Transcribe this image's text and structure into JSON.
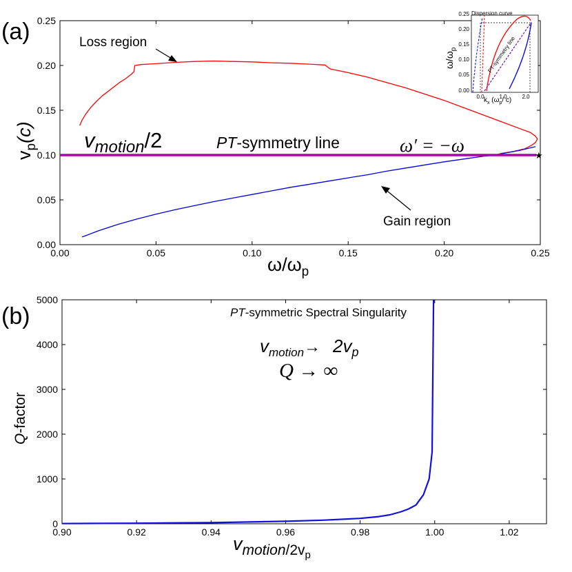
{
  "colors": {
    "loss": "#ff0000",
    "gain": "#0000dd",
    "sym_line": "#aa00aa",
    "q_curve": "#1010dd"
  },
  "chart_data": [
    {
      "panel": "(a)",
      "type": "line",
      "xlabel_main": "ω/ω",
      "xlabel_sub": "p",
      "ylabel_main": "v",
      "ylabel_sub": "p",
      "ylabel_paren": "(c)",
      "xlim": [
        0.0,
        0.25
      ],
      "ylim": [
        0.0,
        0.25
      ],
      "xticks": [
        "0.00",
        "0.05",
        "0.10",
        "0.15",
        "0.20",
        "0.25"
      ],
      "yticks": [
        "0.00",
        "0.05",
        "0.10",
        "0.15",
        "0.20",
        "0.25"
      ],
      "annotations": {
        "loss": "Loss region",
        "gain": "Gain region",
        "vmotion_main": "v",
        "vmotion_sub": "motion",
        "vmotion_rest": "/2",
        "sym_pt": "PT",
        "sym_rest": "-symmetry line",
        "omega": "ω′ = −ω"
      },
      "series": [
        {
          "key": "loss",
          "x": [
            0.0103,
            0.0115,
            0.0135,
            0.016,
            0.019,
            0.022,
            0.025,
            0.028,
            0.031,
            0.034,
            0.037,
            0.0385,
            0.039,
            0.042,
            0.05,
            0.06,
            0.07,
            0.08,
            0.09,
            0.1,
            0.11,
            0.12,
            0.13,
            0.138,
            0.14,
            0.141,
            0.15,
            0.16,
            0.17,
            0.18,
            0.19,
            0.2,
            0.21,
            0.22,
            0.23,
            0.24,
            0.245,
            0.2475,
            0.2485,
            0.2475,
            0.2455,
            0.242,
            0.236,
            0.23,
            0.2265
          ],
          "y": [
            0.133,
            0.139,
            0.146,
            0.153,
            0.16,
            0.166,
            0.171,
            0.176,
            0.181,
            0.185,
            0.19,
            0.193,
            0.2,
            0.201,
            0.202,
            0.2035,
            0.2045,
            0.205,
            0.2045,
            0.204,
            0.203,
            0.2025,
            0.2015,
            0.2005,
            0.197,
            0.196,
            0.192,
            0.187,
            0.181,
            0.175,
            0.168,
            0.161,
            0.153,
            0.145,
            0.137,
            0.129,
            0.125,
            0.121,
            0.118,
            0.114,
            0.111,
            0.107,
            0.104,
            0.102,
            0.1
          ]
        },
        {
          "key": "gain",
          "x": [
            0.0115,
            0.02,
            0.03,
            0.04,
            0.05,
            0.06,
            0.07,
            0.08,
            0.09,
            0.1,
            0.11,
            0.12,
            0.13,
            0.14,
            0.15,
            0.16,
            0.17,
            0.18,
            0.19,
            0.2,
            0.21,
            0.22,
            0.2265,
            0.23,
            0.24,
            0.2475
          ],
          "y": [
            0.0085,
            0.0155,
            0.0225,
            0.0285,
            0.034,
            0.039,
            0.0435,
            0.048,
            0.052,
            0.056,
            0.06,
            0.064,
            0.0675,
            0.071,
            0.0745,
            0.078,
            0.082,
            0.0855,
            0.089,
            0.0925,
            0.0955,
            0.0985,
            0.1,
            0.1015,
            0.1055,
            0.1095
          ]
        },
        {
          "key": "sym_line",
          "x": [
            0.0,
            0.248
          ],
          "y": [
            0.1,
            0.1
          ]
        }
      ],
      "inset": {
        "title": "Dispersion curve",
        "xlabel": "k",
        "xlabel_sub": "x",
        "xlabel_rest": " (ω",
        "xlabel_sub2": "p",
        "xlabel_end": "/ c)",
        "ylabel": "ω/ω",
        "ylabel_sub": "p",
        "line_label": "PT-symmetry line",
        "xticks": [
          "0.0",
          "1.0",
          "2.0"
        ],
        "yticks": [
          "0.00",
          "0.05",
          "0.10",
          "0.15",
          "0.20",
          "0.25"
        ]
      }
    },
    {
      "panel": "(b)",
      "type": "line",
      "xlabel_main": "v",
      "xlabel_sub": "motion",
      "xlabel_rest": "/2v",
      "xlabel_sub2": "p",
      "ylabel_italic": "Q",
      "ylabel_rest": "-factor",
      "xlim": [
        0.9,
        1.03
      ],
      "ylim": [
        0,
        5000
      ],
      "xticks": [
        "0.90",
        "0.92",
        "0.94",
        "0.96",
        "0.98",
        "1.00",
        "1.02"
      ],
      "yticks": [
        "0",
        "1000",
        "2000",
        "3000",
        "4000",
        "5000"
      ],
      "annotations": {
        "title_pt": "PT",
        "title_rest": "-symmetric Spectral Singularity",
        "formula1_v": "v",
        "formula1_sub": "motion",
        "formula1_arrow": "→",
        "formula1_rhs": "2v",
        "formula1_rhs_sub": "p",
        "formula2": "Q → ∞"
      },
      "series": [
        {
          "key": "q_curve",
          "x": [
            0.9,
            0.92,
            0.94,
            0.96,
            0.97,
            0.98,
            0.985,
            0.988,
            0.991,
            0.993,
            0.995,
            0.997,
            0.9985,
            0.9993,
            0.9997
          ],
          "y": [
            5,
            12,
            25,
            55,
            80,
            120,
            160,
            200,
            270,
            330,
            420,
            650,
            1000,
            1600,
            5000
          ]
        }
      ]
    }
  ]
}
